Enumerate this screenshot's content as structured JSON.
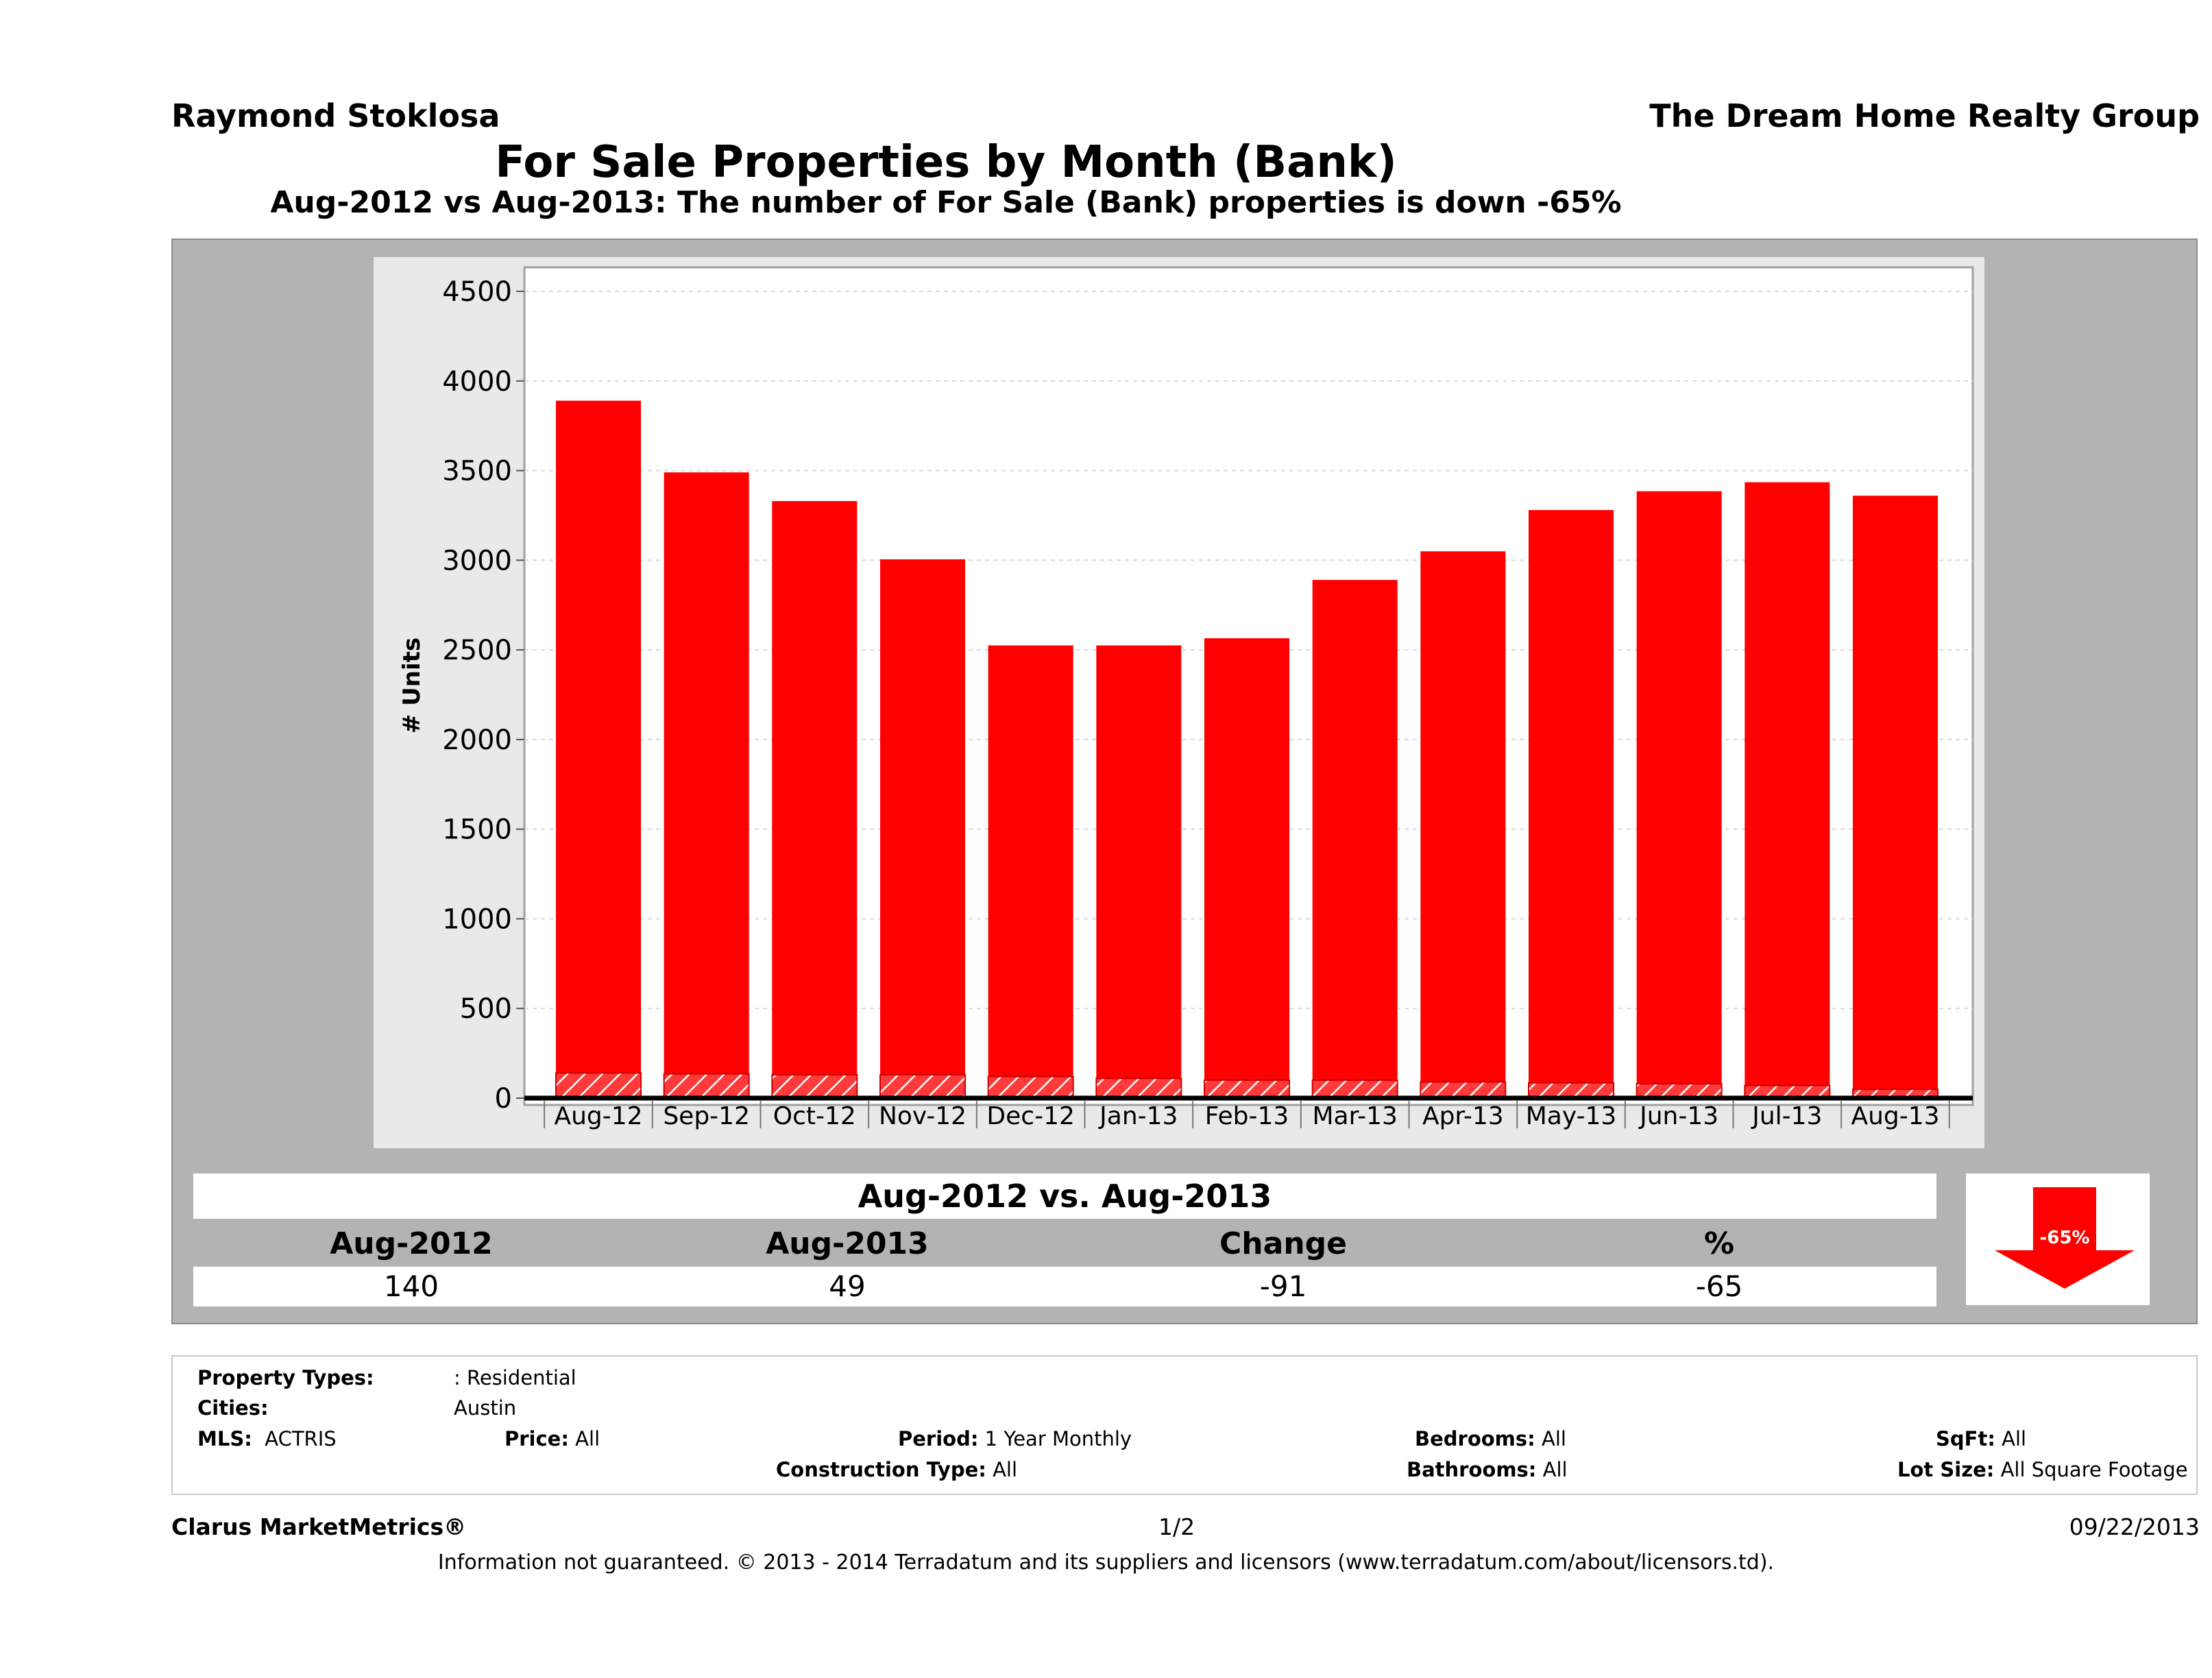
{
  "header": {
    "agent": "Raymond Stoklosa",
    "company": "The Dream Home Realty Group",
    "title": "For Sale Properties by Month (Bank)",
    "subtitle": "Aug-2012 vs Aug-2013: The number of For Sale (Bank)  properties is down -65%"
  },
  "chart_data": {
    "type": "bar",
    "ylabel": "# Units",
    "ylim": [
      0,
      4600
    ],
    "yticks": [
      0,
      500,
      1000,
      1500,
      2000,
      2500,
      3000,
      3500,
      4000,
      4500
    ],
    "ytick_labels": [
      "0",
      "500",
      "1000",
      "1500",
      "2000",
      "2500",
      "3000",
      "3500",
      "4000",
      "4500"
    ],
    "grid": true,
    "categories": [
      "Aug-12",
      "Sep-12",
      "Oct-12",
      "Nov-12",
      "Dec-12",
      "Jan-13",
      "Feb-13",
      "Mar-13",
      "Apr-13",
      "May-13",
      "Jun-13",
      "Jul-13",
      "Aug-13"
    ],
    "series": [
      {
        "values": [
          3890,
          3490,
          3330,
          3005,
          2525,
          2525,
          2565,
          2890,
          3050,
          3280,
          3385,
          3435,
          3360
        ],
        "color": "#ff0000"
      },
      {
        "values": [
          140,
          135,
          130,
          130,
          120,
          110,
          100,
          100,
          90,
          85,
          80,
          70,
          49
        ],
        "color": "#ff0000",
        "pattern": "hatched"
      }
    ]
  },
  "comparison": {
    "title": "Aug-2012 vs. Aug-2013",
    "headers": [
      "Aug-2012",
      "Aug-2013",
      "Change",
      "%"
    ],
    "values": [
      "140",
      "49",
      "-91",
      "-65"
    ],
    "badge": "-65%",
    "arrow_icon": "down-arrow-icon"
  },
  "criteria": {
    "property_types_label": "Property Types:",
    "property_types_value": ": Residential",
    "cities_label": "Cities:",
    "cities_value": "Austin",
    "mls_label": "MLS:",
    "mls_value": "ACTRIS",
    "price_label": "Price:",
    "price_value": "All",
    "period_label": "Period:",
    "period_value": "1 Year Monthly",
    "construction_label": "Construction Type:",
    "construction_value": "All",
    "bedrooms_label": "Bedrooms:",
    "bedrooms_value": "All",
    "bathrooms_label": "Bathrooms:",
    "bathrooms_value": "All",
    "sqft_label": "SqFt:",
    "sqft_value": "All",
    "lotsize_label": "Lot Size:",
    "lotsize_value": "All Square Footage"
  },
  "footer": {
    "brand": "Clarus MarketMetrics®",
    "page": "1/2",
    "date": "09/22/2013",
    "disclaimer": "Information not guaranteed. © 2013 - 2014 Terradatum and its suppliers and licensors (www.terradatum.com/about/licensors.td)."
  },
  "colors": {
    "bar": "#ff0000",
    "panel": "#b3b3b3",
    "frame": "#e9e9e9"
  }
}
